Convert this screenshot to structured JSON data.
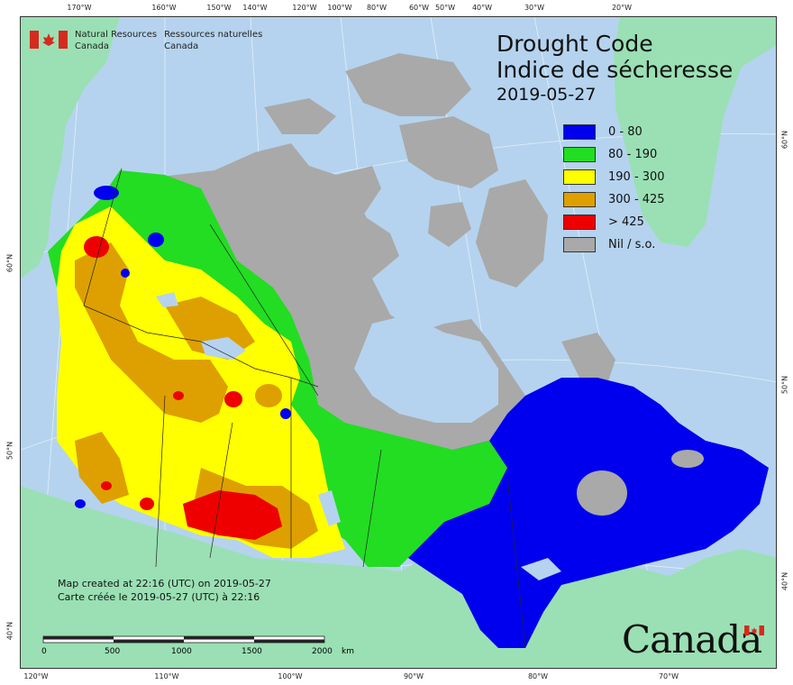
{
  "header": {
    "agency_en": "Natural Resources",
    "agency_en2": "Canada",
    "agency_fr": "Ressources naturelles",
    "agency_fr2": "Canada"
  },
  "title": {
    "en": "Drought Code",
    "fr": "Indice de sécheresse",
    "date": "2019-05-27"
  },
  "legend": {
    "items": [
      {
        "label": "0 - 80",
        "color": "#0000ee"
      },
      {
        "label": "80 - 190",
        "color": "#22dd22"
      },
      {
        "label": "190 - 300",
        "color": "#ffff00"
      },
      {
        "label": "300 - 425",
        "color": "#dda000"
      },
      {
        "label": "> 425",
        "color": "#ee0000"
      },
      {
        "label": "Nil / s.o.",
        "color": "#a9a9a9"
      }
    ]
  },
  "axes": {
    "top": [
      "170°W",
      "160°W",
      "150°W",
      "140°W",
      "120°W",
      "100°W",
      "80°W",
      "60°W",
      "50°W",
      "40°W",
      "30°W",
      "20°W"
    ],
    "bottom": [
      "120°W",
      "110°W",
      "100°W",
      "90°W",
      "80°W",
      "70°W"
    ],
    "left": [
      "60°N",
      "50°N",
      "40°N"
    ],
    "right": [
      "60°N",
      "50°N",
      "40°N"
    ]
  },
  "footer": {
    "created_en": "Map created at 22:16 (UTC) on 2019-05-27",
    "created_fr": "Carte créée le 2019-05-27 (UTC) à 22:16",
    "scale_labels": [
      "0",
      "500",
      "1000",
      "1500",
      "2000"
    ],
    "scale_unit": "km",
    "wordmark": "Canada"
  },
  "colors": {
    "ocean": "#b5d3ee",
    "land_other": "#9ae0b4",
    "nil": "#a9a9a9"
  }
}
